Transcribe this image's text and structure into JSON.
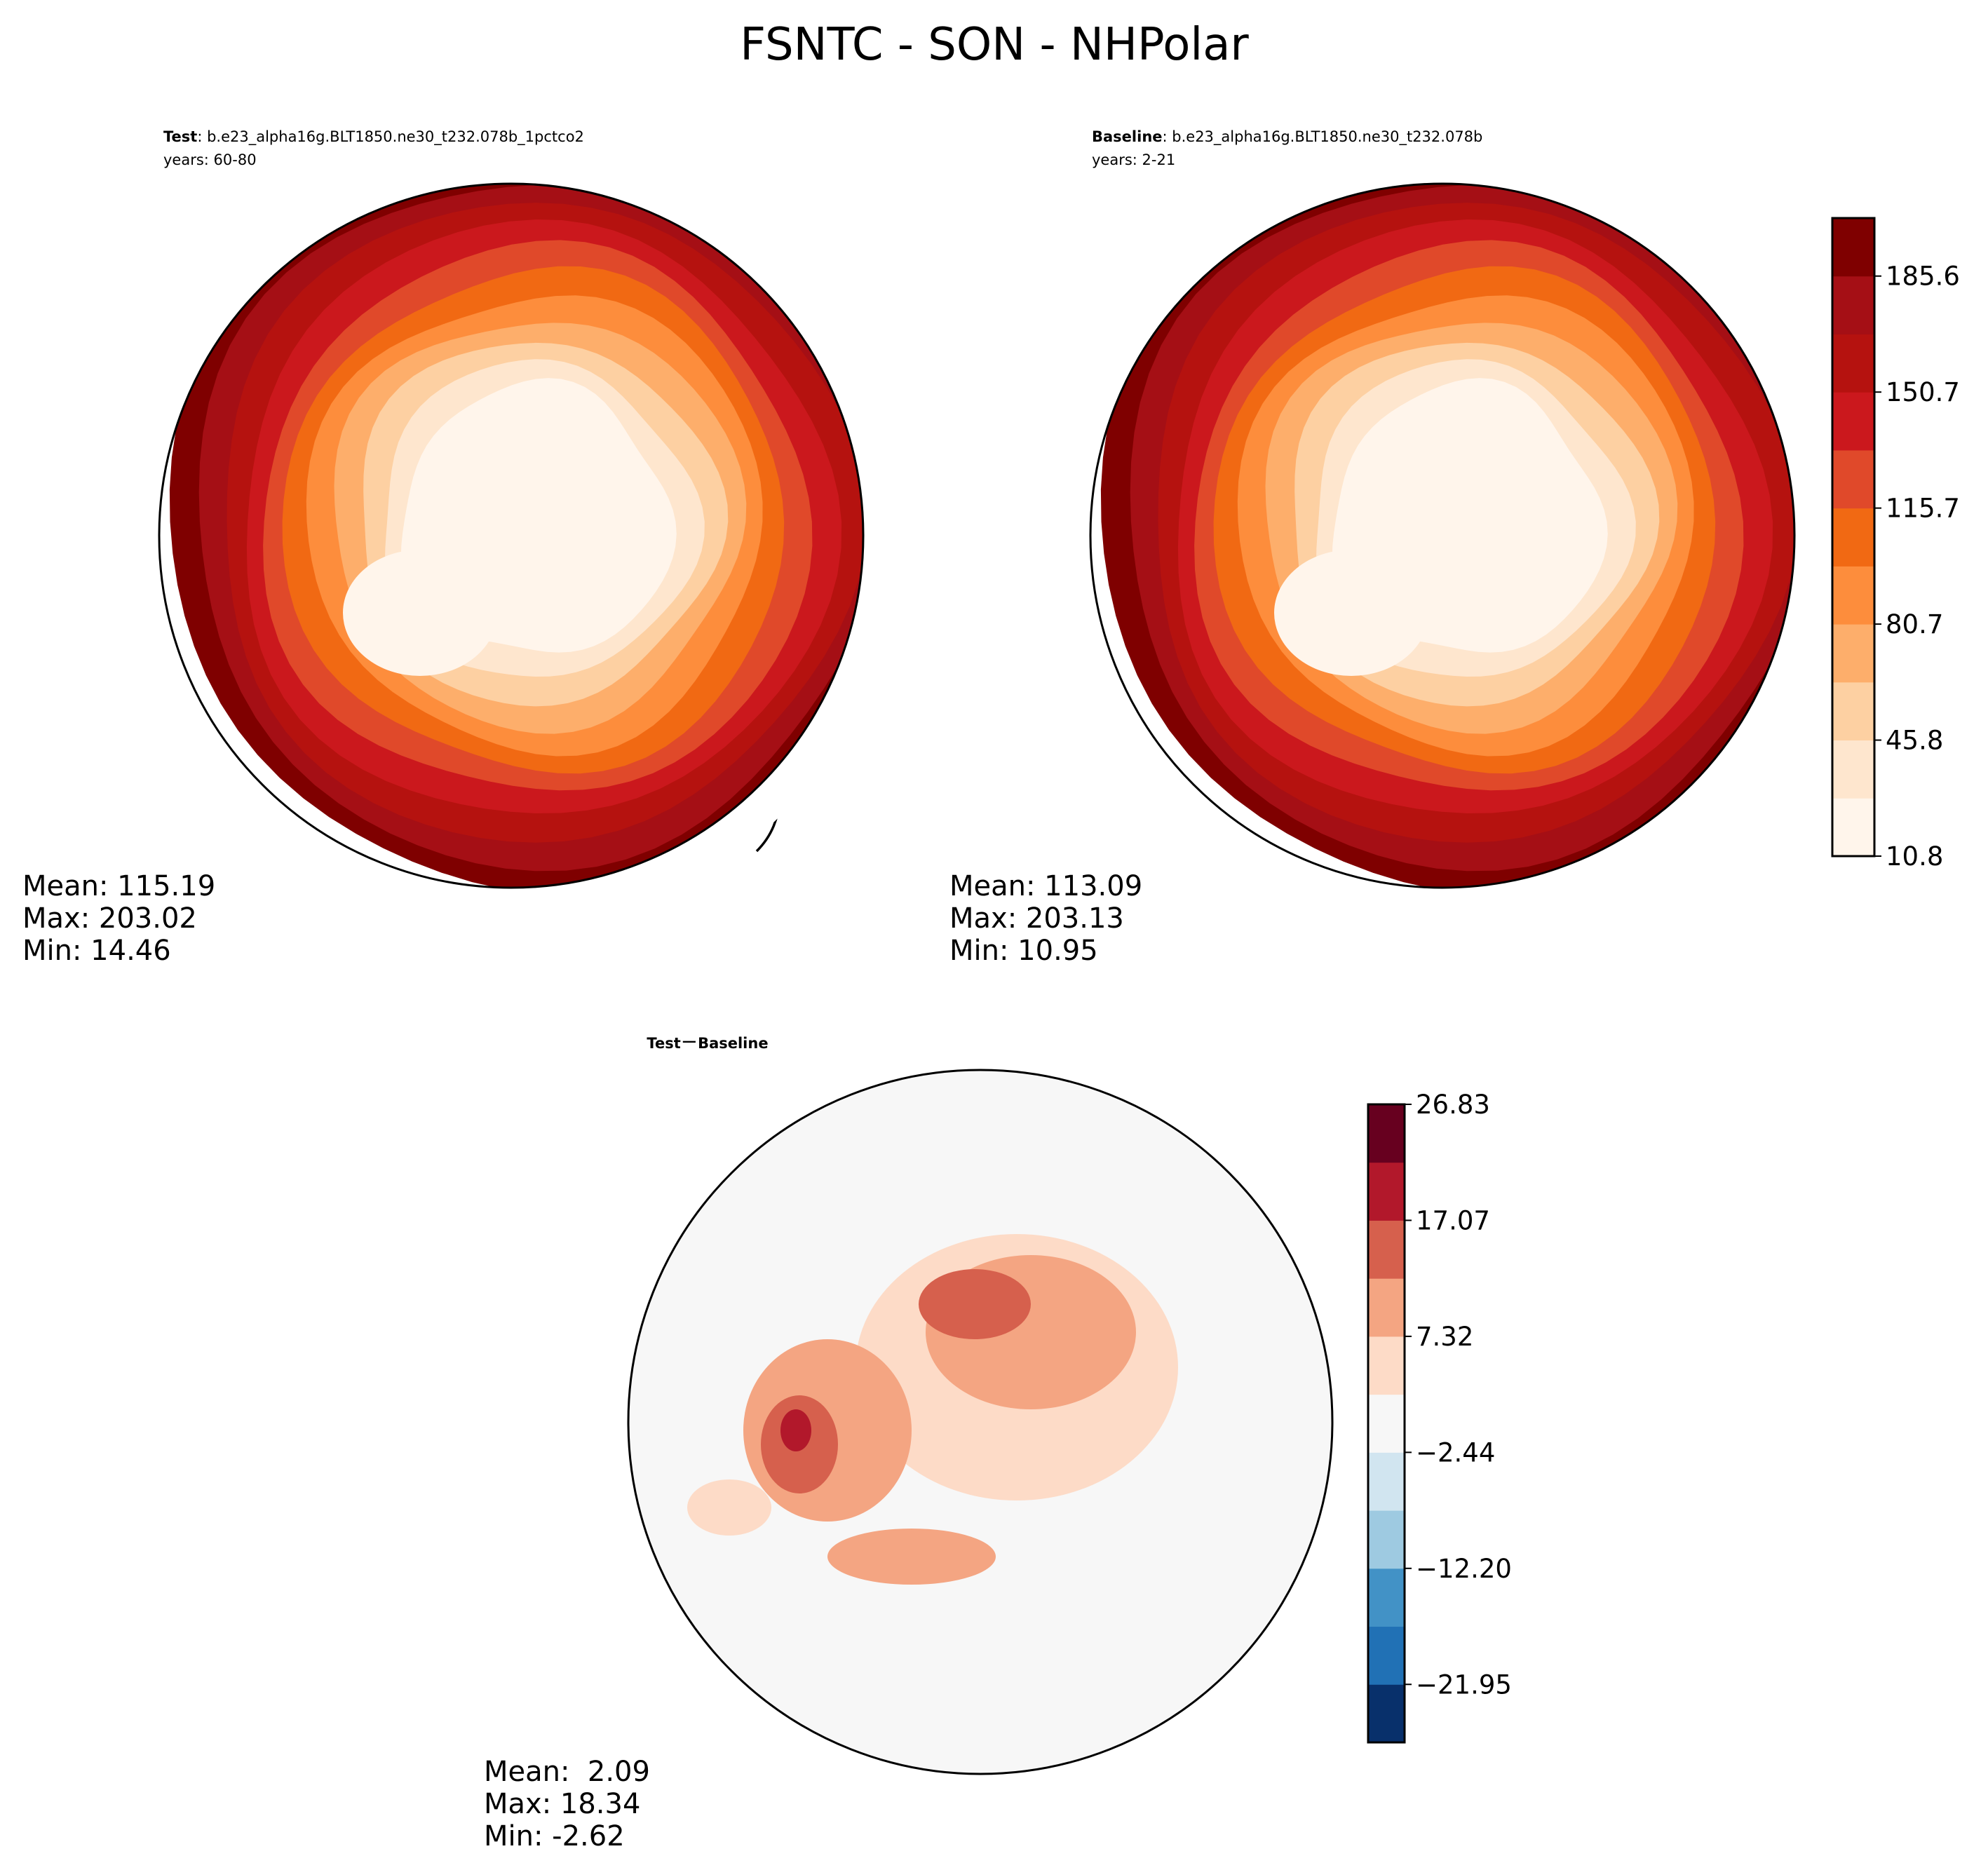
{
  "suptitle": "FSNTC - SON - NHPolar",
  "panels": {
    "test": {
      "title_bold": "Test",
      "title_rest": ": b.e23_alpha16g.BLT1850.ne30_t232.078b_1pctco2",
      "years": "years: 60-80",
      "stats": [
        "Mean: 115.19",
        "Max: 203.02",
        "Min: 14.46"
      ]
    },
    "baseline": {
      "title_bold": "Baseline",
      "title_rest": ": b.e23_alpha16g.BLT1850.ne30_t232.078b",
      "years": "years: 2-21",
      "stats": [
        "Mean: 113.09",
        "Max: 203.13",
        "Min: 10.95"
      ]
    },
    "diff": {
      "title_a": "Test",
      "title_op": "−",
      "title_b": "Baseline",
      "stats": [
        "Mean:  2.09",
        "Max: 18.34",
        "Min: -2.62"
      ]
    }
  },
  "colorbar_main": {
    "ticks": [
      "10.8",
      "45.8",
      "80.7",
      "115.7",
      "150.7",
      "185.6"
    ],
    "levels": 11,
    "colors": [
      "#fff5eb",
      "#fee6ce",
      "#fdd0a2",
      "#fdae6b",
      "#fd8d3c",
      "#f16913",
      "#e0492a",
      "#cb181d",
      "#b5120f",
      "#a50f15",
      "#7f0000"
    ]
  },
  "colorbar_diff": {
    "ticks": [
      "26.83",
      "17.07",
      "7.32",
      "−2.44",
      "−12.20",
      "−21.95"
    ],
    "colors": [
      "#08306b",
      "#2171b5",
      "#4292c6",
      "#9ecae1",
      "#d1e5f0",
      "#f7f7f7",
      "#fddbc7",
      "#f4a582",
      "#d6604d",
      "#b2182b",
      "#67001f"
    ]
  },
  "chart_data": [
    {
      "type": "heatmap",
      "title": "Test : b.e23_alpha16g.BLT1850.ne30_t232.078b_1pctco2",
      "subtitle": "years: 60-80",
      "projection": "north polar stereographic",
      "field": "FSNTC",
      "season": "SON",
      "stats": {
        "mean": 115.19,
        "max": 203.02,
        "min": 14.46
      },
      "colorbar_range": [
        10.8,
        203.02
      ],
      "pattern": "concentric; lowest near pole and over Greenland, highest at the southern boundary"
    },
    {
      "type": "heatmap",
      "title": "Baseline : b.e23_alpha16g.BLT1850.ne30_t232.078b",
      "subtitle": "years: 2-21",
      "projection": "north polar stereographic",
      "field": "FSNTC",
      "season": "SON",
      "stats": {
        "mean": 113.09,
        "max": 203.13,
        "min": 10.95
      },
      "colorbar_ticks": [
        10.8,
        45.8,
        80.7,
        115.7,
        150.7,
        185.6
      ]
    },
    {
      "type": "heatmap",
      "title": "Test − Baseline",
      "projection": "north polar stereographic",
      "stats": {
        "mean": 2.09,
        "max": 18.34,
        "min": -2.62
      },
      "colorbar_ticks": [
        26.83,
        17.07,
        7.32,
        -2.44,
        -12.2,
        -21.95
      ],
      "pattern": "mostly near zero; positive anomalies over the Arctic Ocean, Canadian archipelago and Baffin Bay, Greenland margins"
    }
  ]
}
